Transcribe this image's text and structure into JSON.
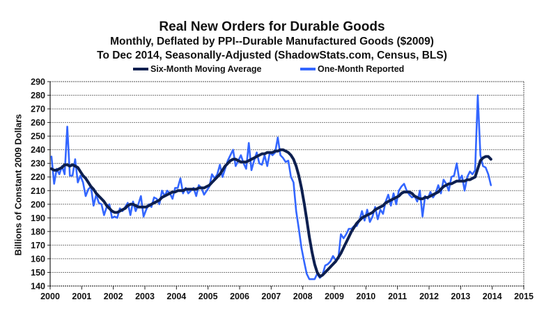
{
  "chart_data": {
    "type": "line",
    "title": "Real New Orders for Durable Goods",
    "subtitle_1": "Monthly, Deflated by PPI--Durable Manufactured Goods ($2009)",
    "subtitle_2": "To Dec 2014, Seasonally-Adjusted  (ShadowStats.com, Census, BLS)",
    "xlabel": "",
    "ylabel": "Billions  of Constant 2009 Dollars",
    "x_start": "2000-01",
    "x_end": "2014-12",
    "frequency": "monthly",
    "xlim": [
      2000,
      2015
    ],
    "ylim": [
      140,
      290
    ],
    "x_ticks": [
      "2000",
      "2001",
      "2002",
      "2003",
      "2004",
      "2005",
      "2006",
      "2007",
      "2008",
      "2009",
      "2010",
      "2011",
      "2012",
      "2013",
      "2014",
      "2015"
    ],
    "y_ticks": [
      "140",
      "150",
      "160",
      "170",
      "180",
      "190",
      "200",
      "210",
      "220",
      "230",
      "240",
      "250",
      "260",
      "270",
      "280",
      "290"
    ],
    "grid": true,
    "legend_position": "top-center",
    "series": [
      {
        "name": "Six-Month Moving Average",
        "color": "#0d1f4f",
        "values": [
          226,
          225,
          225,
          226,
          227,
          229,
          229,
          228,
          229,
          228,
          227,
          224,
          221,
          219,
          216,
          213,
          211,
          208,
          206,
          204,
          202,
          199,
          197,
          195,
          194,
          194,
          195,
          196,
          197,
          199,
          200,
          200,
          199,
          198,
          198,
          198,
          198,
          199,
          200,
          201,
          202,
          203,
          205,
          206,
          207,
          208,
          209,
          209,
          210,
          210,
          210,
          211,
          211,
          211,
          211,
          211,
          212,
          212,
          212,
          213,
          214,
          216,
          218,
          220,
          222,
          225,
          228,
          230,
          232,
          233,
          233,
          232,
          231,
          231,
          231,
          232,
          233,
          234,
          235,
          236,
          237,
          237,
          238,
          238,
          238,
          239,
          239,
          240,
          240,
          239,
          238,
          236,
          233,
          228,
          221,
          212,
          201,
          189,
          176,
          165,
          156,
          150,
          147,
          148,
          150,
          152,
          154,
          156,
          158,
          161,
          164,
          168,
          172,
          176,
          180,
          183,
          186,
          188,
          190,
          191,
          192,
          193,
          194,
          196,
          197,
          198,
          199,
          201,
          202,
          203,
          204,
          205,
          206,
          208,
          209,
          209,
          209,
          208,
          206,
          205,
          204,
          204,
          205,
          205,
          206,
          207,
          208,
          209,
          211,
          213,
          214,
          215,
          215,
          216,
          217,
          217,
          217,
          217,
          218,
          218,
          219,
          220,
          226,
          232,
          234,
          235,
          235,
          233
        ]
      },
      {
        "name": "One-Month Reported",
        "color": "#3366ff",
        "values": [
          235,
          215,
          226,
          222,
          228,
          222,
          257,
          221,
          221,
          233,
          216,
          221,
          216,
          206,
          211,
          213,
          199,
          207,
          201,
          200,
          192,
          198,
          200,
          190,
          191,
          190,
          197,
          195,
          198,
          201,
          192,
          202,
          195,
          200,
          206,
          191,
          196,
          200,
          198,
          205,
          204,
          200,
          210,
          206,
          210,
          208,
          204,
          212,
          212,
          219,
          208,
          212,
          208,
          210,
          212,
          206,
          214,
          212,
          207,
          210,
          213,
          222,
          219,
          222,
          229,
          220,
          226,
          232,
          236,
          240,
          228,
          232,
          236,
          230,
          226,
          245,
          225,
          232,
          238,
          230,
          229,
          236,
          228,
          238,
          236,
          238,
          249,
          236,
          234,
          231,
          232,
          220,
          216,
          195,
          182,
          168,
          158,
          149,
          145,
          145,
          145,
          149,
          146,
          148,
          155,
          156,
          158,
          162,
          159,
          160,
          178,
          175,
          178,
          182,
          182,
          184,
          184,
          188,
          195,
          188,
          196,
          187,
          191,
          198,
          189,
          196,
          193,
          202,
          207,
          199,
          208,
          200,
          210,
          213,
          215,
          210,
          207,
          205,
          206,
          202,
          210,
          191,
          206,
          204,
          209,
          205,
          208,
          214,
          208,
          218,
          215,
          210,
          220,
          221,
          230,
          218,
          221,
          210,
          220,
          224,
          222,
          225,
          280,
          236,
          228,
          227,
          222,
          214
        ]
      }
    ]
  },
  "legend": {
    "items": [
      {
        "label": "Six-Month Moving Average",
        "color": "#0d1f4f"
      },
      {
        "label": "One-Month Reported",
        "color": "#3366ff"
      }
    ]
  }
}
